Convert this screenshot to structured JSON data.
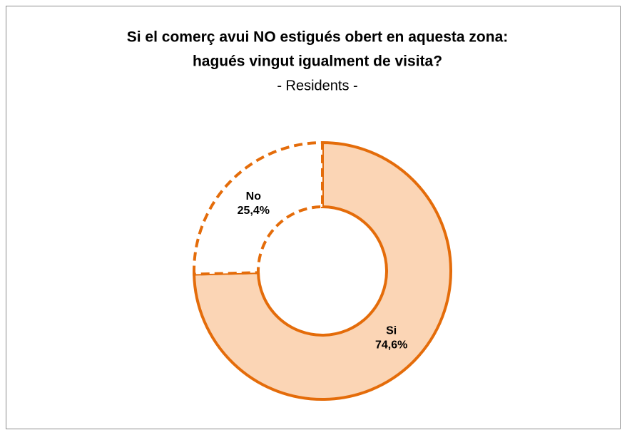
{
  "chart_data": {
    "type": "donut",
    "title": [
      "Si el comerç avui NO estigués obert en aquesta zona:",
      "hagués vingut igualment de visita?"
    ],
    "subtitle": "- Residents -",
    "categories": [
      "Si",
      "No"
    ],
    "values": [
      74.6,
      25.4
    ],
    "value_labels": [
      "74,6%",
      "25,4%"
    ],
    "colors": [
      "#fbd5b5",
      "#ffffff"
    ],
    "edge_color": "#e46c0a",
    "line_styles": [
      "solid",
      "dashed"
    ]
  }
}
